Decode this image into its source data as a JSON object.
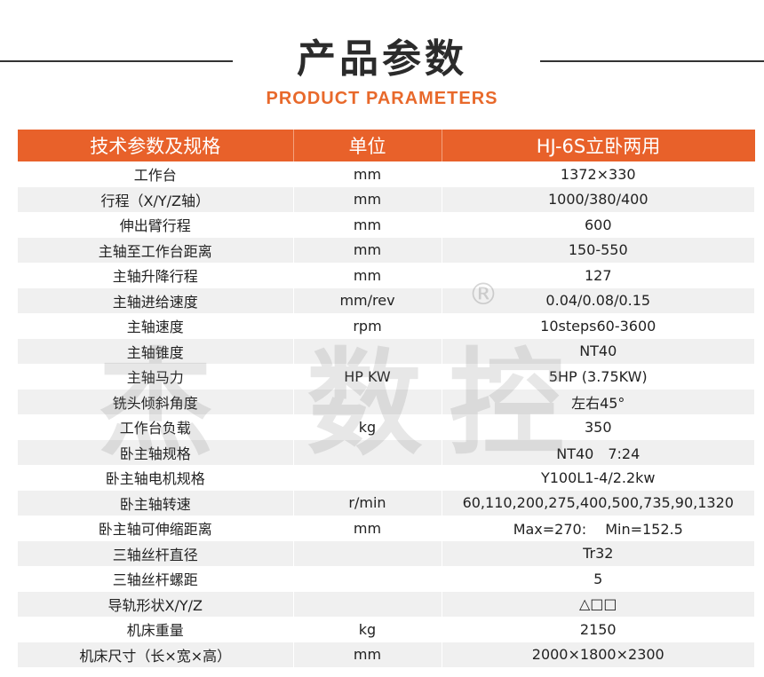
{
  "title": "产品参数",
  "subtitle": "PRODUCT PARAMETERS",
  "watermark": "杰 数控",
  "watermark_mark": "®",
  "colors": {
    "accent": "#e8612a",
    "row_alt": "#f0f0f0"
  },
  "table": {
    "headers": [
      "技术参数及规格",
      "单位",
      "HJ-6S立卧两用"
    ],
    "rows": [
      [
        "工作台",
        "mm",
        "1372×330"
      ],
      [
        "行程（X/Y/Z轴）",
        "mm",
        "1000/380/400"
      ],
      [
        "伸出臂行程",
        "mm",
        "600"
      ],
      [
        "主轴至工作台距离",
        "mm",
        "150-550"
      ],
      [
        "主轴升降行程",
        "mm",
        "127"
      ],
      [
        "主轴进给速度",
        "mm/rev",
        "0.04/0.08/0.15"
      ],
      [
        "主轴速度",
        "rpm",
        "10steps60-3600"
      ],
      [
        "主轴锥度",
        "",
        "NT40"
      ],
      [
        "主轴马力",
        "HP KW",
        "5HP (3.75KW)"
      ],
      [
        "铣头倾斜角度",
        "",
        "左右45°"
      ],
      [
        "工作台负载",
        "kg",
        "350"
      ],
      [
        "卧主轴规格",
        "",
        "NT40　7:24"
      ],
      [
        "卧主轴电机规格",
        "",
        "Y100L1-4/2.2kw"
      ],
      [
        "卧主轴转速",
        "r/min",
        "60,110,200,275,400,500,735,90,1320"
      ],
      [
        "卧主轴可伸缩距离",
        "mm",
        "Max=270:　 Min=152.5"
      ],
      [
        "三轴丝杆直径",
        "",
        "Tr32"
      ],
      [
        "三轴丝杆螺距",
        "",
        "5"
      ],
      [
        "导轨形状X/Y/Z",
        "",
        "△□□"
      ],
      [
        "机床重量",
        "kg",
        "2150"
      ],
      [
        "机床尺寸（长×宽×高）",
        "mm",
        "2000×1800×2300"
      ]
    ]
  }
}
